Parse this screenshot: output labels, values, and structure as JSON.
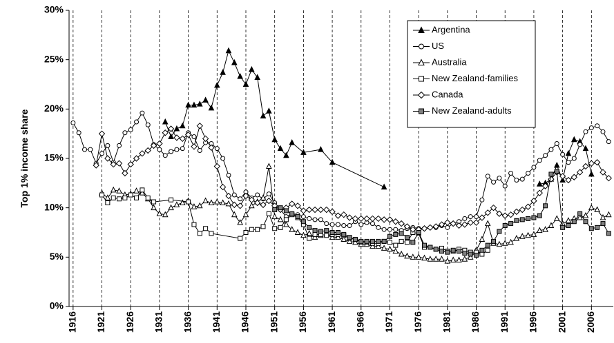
{
  "chart_data": {
    "type": "line",
    "y_label": "Top 1% income share",
    "xlim": [
      1915.3,
      2009.8
    ],
    "ylim": [
      0,
      30
    ],
    "xticks": [
      1916,
      1921,
      1926,
      1931,
      1936,
      1941,
      1946,
      1951,
      1956,
      1961,
      1966,
      1971,
      1976,
      1981,
      1986,
      1991,
      1996,
      2001,
      2006
    ],
    "yticks": [
      {
        "value": 0,
        "label": "0%"
      },
      {
        "value": 5,
        "label": "5%"
      },
      {
        "value": 10,
        "label": "10%"
      },
      {
        "value": 15,
        "label": "15%"
      },
      {
        "value": 20,
        "label": "20%"
      },
      {
        "value": 25,
        "label": "25%"
      },
      {
        "value": 30,
        "label": "30%"
      }
    ],
    "grid": "x-dashed",
    "legend": "top-right",
    "series": [
      {
        "name": "Argentina",
        "color": "#000000",
        "marker": "triangle",
        "marker_fill": "#000000",
        "x": [
          1932,
          1933,
          1934,
          1935,
          1936,
          1937,
          1938,
          1939,
          1940,
          1941,
          1942,
          1943,
          1944,
          1945,
          1946,
          1947,
          1948,
          1949,
          1950,
          1951,
          1952,
          1953,
          1954,
          1956,
          1959,
          1961,
          1970,
          1980,
          1997,
          1998,
          1999,
          2000,
          2001,
          2002,
          2003,
          2004,
          2005,
          2006
        ],
        "values": [
          18.7,
          17.2,
          18.0,
          18.3,
          20.4,
          20.4,
          20.5,
          20.9,
          20.1,
          22.4,
          23.7,
          25.9,
          24.7,
          23.3,
          22.5,
          24.0,
          23.2,
          19.3,
          19.8,
          16.9,
          16.0,
          15.3,
          16.6,
          15.6,
          15.9,
          14.6,
          12.1,
          null,
          12.4,
          12.5,
          12.9,
          14.3,
          12.8,
          15.5,
          16.9,
          16.7,
          16.0,
          13.4
        ]
      },
      {
        "name": "US",
        "color": "#000000",
        "marker": "circle",
        "marker_fill": "#ffffff",
        "x": [
          1916,
          1917,
          1918,
          1919,
          1920,
          1921,
          1922,
          1923,
          1924,
          1925,
          1926,
          1927,
          1928,
          1929,
          1930,
          1931,
          1932,
          1933,
          1934,
          1935,
          1936,
          1937,
          1938,
          1939,
          1940,
          1941,
          1942,
          1943,
          1944,
          1945,
          1946,
          1947,
          1948,
          1949,
          1950,
          1951,
          1952,
          1953,
          1954,
          1955,
          1956,
          1957,
          1958,
          1959,
          1960,
          1961,
          1962,
          1963,
          1964,
          1965,
          1966,
          1967,
          1968,
          1969,
          1970,
          1971,
          1972,
          1973,
          1974,
          1975,
          1976,
          1977,
          1978,
          1979,
          1980,
          1981,
          1982,
          1983,
          1984,
          1985,
          1986,
          1987,
          1988,
          1989,
          1990,
          1991,
          1992,
          1993,
          1994,
          1995,
          1996,
          1997,
          1998,
          1999,
          2000,
          2001,
          2002,
          2003,
          2004,
          2005,
          2006,
          2007,
          2008,
          2009
        ],
        "values": [
          18.6,
          17.6,
          15.9,
          15.9,
          14.5,
          15.5,
          16.3,
          14.6,
          16.3,
          17.6,
          17.9,
          18.7,
          19.6,
          18.4,
          16.4,
          15.9,
          15.3,
          15.7,
          15.9,
          16.0,
          17.6,
          17.2,
          15.8,
          16.6,
          16.5,
          16.0,
          15.0,
          13.3,
          11.3,
          10.9,
          11.6,
          11.0,
          11.3,
          10.9,
          11.4,
          10.5,
          9.8,
          9.1,
          9.4,
          9.3,
          9.1,
          8.9,
          8.8,
          8.8,
          8.4,
          8.3,
          8.3,
          8.2,
          8.2,
          8.6,
          8.3,
          8.5,
          8.4,
          8.0,
          7.8,
          7.8,
          7.8,
          7.7,
          7.9,
          8.0,
          7.9,
          7.9,
          8.0,
          8.0,
          8.2,
          8.0,
          8.4,
          8.6,
          8.9,
          9.1,
          9.1,
          10.8,
          13.2,
          12.6,
          13.0,
          12.2,
          13.5,
          12.8,
          12.9,
          13.5,
          14.1,
          14.8,
          15.3,
          15.9,
          16.5,
          15.4,
          14.6,
          15.0,
          16.4,
          17.7,
          18.1,
          18.3,
          17.7,
          16.7
        ]
      },
      {
        "name": "Australia",
        "color": "#000000",
        "marker": "triangle",
        "marker_fill": "#ffffff",
        "x": [
          1921,
          1922,
          1923,
          1924,
          1925,
          1926,
          1927,
          1928,
          1929,
          1930,
          1931,
          1932,
          1933,
          1934,
          1935,
          1936,
          1937,
          1938,
          1939,
          1940,
          1941,
          1942,
          1943,
          1944,
          1945,
          1946,
          1947,
          1948,
          1949,
          1950,
          1951,
          1952,
          1953,
          1954,
          1955,
          1956,
          1957,
          1958,
          1959,
          1960,
          1961,
          1962,
          1963,
          1964,
          1965,
          1966,
          1967,
          1968,
          1969,
          1970,
          1971,
          1972,
          1973,
          1974,
          1975,
          1976,
          1977,
          1978,
          1979,
          1980,
          1981,
          1982,
          1983,
          1984,
          1985,
          1986,
          1987,
          1988,
          1989,
          1990,
          1991,
          1992,
          1993,
          1994,
          1995,
          1996,
          1997,
          1998,
          1999,
          2000,
          2001,
          2002,
          2003,
          2004,
          2005,
          2006,
          2007,
          2008,
          2009
        ],
        "values": [
          11.5,
          11.0,
          11.8,
          11.7,
          11.3,
          11.4,
          11.7,
          11.5,
          10.9,
          10.0,
          9.4,
          9.3,
          10.0,
          10.3,
          10.5,
          10.7,
          10.1,
          10.2,
          10.7,
          10.5,
          10.6,
          10.5,
          10.4,
          9.3,
          8.5,
          9.3,
          10.2,
          10.6,
          11.0,
          14.2,
          9.1,
          8.8,
          8.3,
          7.8,
          7.5,
          7.2,
          7.4,
          7.0,
          7.2,
          7.3,
          7.0,
          7.0,
          6.8,
          6.6,
          6.5,
          6.3,
          6.3,
          6.1,
          6.1,
          5.9,
          5.8,
          5.6,
          5.3,
          5.1,
          5.0,
          5.0,
          4.9,
          4.8,
          4.8,
          4.8,
          4.6,
          4.7,
          4.7,
          4.8,
          5.0,
          5.7,
          6.8,
          8.4,
          6.4,
          6.3,
          6.4,
          6.5,
          6.9,
          7.1,
          7.2,
          7.3,
          7.7,
          7.8,
          8.2,
          8.9,
          8.4,
          8.7,
          8.9,
          9.0,
          9.2,
          10.0,
          9.8,
          9.0,
          9.3
        ]
      },
      {
        "name": "New Zealand-families",
        "color": "#000000",
        "marker": "square",
        "marker_fill": "#ffffff",
        "x": [
          1921,
          1922,
          1923,
          1924,
          1925,
          1926,
          1927,
          1928,
          1929,
          1930,
          1933,
          1936,
          1937,
          1938,
          1939,
          1940,
          1945,
          1946,
          1947,
          1948,
          1949,
          1950,
          1951,
          1952,
          1953,
          1954,
          1955,
          1956,
          1957,
          1958,
          1959,
          1960,
          1961,
          1962,
          1963,
          1964,
          1965,
          1966,
          1967,
          1968,
          1969,
          1970,
          1971,
          1972,
          1973,
          1974,
          1975,
          1976,
          1977,
          1978,
          1979,
          1980,
          1981,
          1982,
          1983,
          1984,
          1985,
          1986,
          1987,
          1988
        ],
        "values": [
          11.3,
          10.5,
          11.0,
          10.9,
          11.0,
          11.3,
          11.0,
          11.8,
          11.0,
          10.6,
          10.8,
          10.6,
          8.3,
          7.4,
          7.9,
          7.4,
          6.9,
          7.5,
          7.8,
          7.8,
          8.1,
          9.4,
          7.9,
          8.0,
          8.8,
          9.3,
          9.0,
          8.3,
          6.9,
          7.3,
          7.3,
          7.2,
          7.3,
          7.3,
          7.2,
          6.9,
          6.8,
          6.5,
          6.5,
          6.4,
          6.4,
          6.6,
          6.5,
          6.2,
          6.6,
          6.5,
          7.5,
          7.4,
          6.0,
          6.0,
          5.8,
          5.9,
          5.6,
          5.6,
          5.8,
          5.7,
          5.5,
          5.5,
          5.3,
          5.7
        ]
      },
      {
        "name": "Canada",
        "color": "#000000",
        "marker": "diamond",
        "marker_fill": "#ffffff",
        "x": [
          1920,
          1921,
          1922,
          1923,
          1924,
          1925,
          1926,
          1927,
          1928,
          1929,
          1930,
          1931,
          1932,
          1933,
          1934,
          1935,
          1936,
          1937,
          1938,
          1939,
          1940,
          1941,
          1942,
          1943,
          1944,
          1945,
          1946,
          1947,
          1948,
          1949,
          1950,
          1951,
          1952,
          1953,
          1954,
          1955,
          1956,
          1957,
          1958,
          1959,
          1960,
          1961,
          1962,
          1963,
          1964,
          1965,
          1966,
          1967,
          1968,
          1969,
          1970,
          1971,
          1972,
          1973,
          1974,
          1975,
          1976,
          1977,
          1978,
          1979,
          1980,
          1981,
          1982,
          1983,
          1984,
          1985,
          1986,
          1987,
          1988,
          1989,
          1990,
          1991,
          1992,
          1993,
          1994,
          1995,
          1996,
          1997,
          1998,
          1999,
          2000,
          2001,
          2002,
          2003,
          2004,
          2005,
          2006,
          2007,
          2008,
          2009
        ],
        "values": [
          14.3,
          17.5,
          15.0,
          14.4,
          14.5,
          13.5,
          14.4,
          15.0,
          15.5,
          15.8,
          16.3,
          16.5,
          17.6,
          18.0,
          17.1,
          17.0,
          17.4,
          16.2,
          18.3,
          17.0,
          16.1,
          14.2,
          12.1,
          11.2,
          10.3,
          10.2,
          11.2,
          10.8,
          10.5,
          10.3,
          10.7,
          10.2,
          9.8,
          10.0,
          10.4,
          10.2,
          9.7,
          9.8,
          9.8,
          9.8,
          9.8,
          9.6,
          9.2,
          9.3,
          9.0,
          8.9,
          8.9,
          8.9,
          8.9,
          8.9,
          8.8,
          8.8,
          8.6,
          8.4,
          8.1,
          7.8,
          7.8,
          7.9,
          8.0,
          8.1,
          8.3,
          8.5,
          8.4,
          8.2,
          8.3,
          8.5,
          8.5,
          9.0,
          9.5,
          10.0,
          9.4,
          9.2,
          9.3,
          9.6,
          9.8,
          10.1,
          10.7,
          11.5,
          12.2,
          12.9,
          13.6,
          13.2,
          12.8,
          13.1,
          13.6,
          14.2,
          14.5,
          14.6,
          13.6,
          13.0
        ]
      },
      {
        "name": "New Zealand-adults",
        "color": "#000000",
        "marker": "square",
        "marker_fill": "#808080",
        "x": [
          1951,
          1952,
          1953,
          1954,
          1955,
          1956,
          1957,
          1958,
          1959,
          1960,
          1961,
          1962,
          1963,
          1964,
          1965,
          1966,
          1967,
          1968,
          1969,
          1970,
          1971,
          1972,
          1973,
          1974,
          1975,
          1976,
          1977,
          1978,
          1979,
          1980,
          1981,
          1982,
          1983,
          1984,
          1985,
          1986,
          1987,
          1988,
          1989,
          1990,
          1991,
          1992,
          1993,
          1994,
          1995,
          1996,
          1997,
          1998,
          1999,
          2000,
          2001,
          2002,
          2003,
          2004,
          2005,
          2006,
          2007,
          2008,
          2009
        ],
        "values": [
          9.8,
          10.0,
          9.7,
          9.4,
          9.1,
          8.6,
          8.0,
          7.7,
          7.6,
          7.7,
          7.5,
          7.5,
          7.3,
          7.0,
          6.8,
          6.6,
          6.6,
          6.6,
          6.6,
          6.6,
          7.1,
          7.3,
          7.4,
          7.0,
          6.5,
          7.5,
          6.2,
          6.0,
          5.8,
          5.6,
          5.5,
          5.7,
          5.6,
          5.4,
          5.3,
          5.2,
          5.7,
          6.2,
          6.6,
          7.6,
          8.2,
          8.4,
          8.7,
          8.8,
          8.9,
          9.0,
          9.2,
          10.2,
          13.4,
          13.7,
          8.0,
          8.2,
          8.6,
          9.4,
          8.6,
          7.9,
          8.0,
          8.4,
          7.4
        ]
      }
    ]
  }
}
